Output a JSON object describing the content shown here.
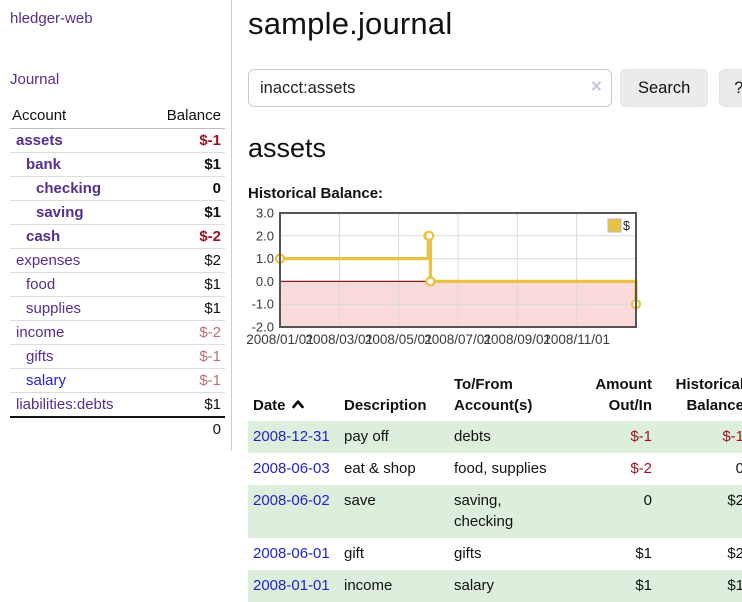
{
  "sidebar": {
    "brand": "hledger-web",
    "journal_link": "Journal",
    "accounts": {
      "col_account": "Account",
      "col_balance": "Balance",
      "rows": [
        {
          "name": "assets",
          "balance": "$-1",
          "level": 1,
          "bold": true,
          "neg": "strong"
        },
        {
          "name": "bank",
          "balance": "$1",
          "level": 2,
          "bold": true
        },
        {
          "name": "checking",
          "balance": "0",
          "level": 3,
          "bold": true
        },
        {
          "name": "saving",
          "balance": "$1",
          "level": 3,
          "bold": true
        },
        {
          "name": "cash",
          "balance": "$-2",
          "level": 2,
          "bold": true,
          "neg": "strong"
        },
        {
          "name": "expenses",
          "balance": "$2",
          "level": 1
        },
        {
          "name": "food",
          "balance": "$1",
          "level": 2
        },
        {
          "name": "supplies",
          "balance": "$1",
          "level": 2
        },
        {
          "name": "income",
          "balance": "$-2",
          "level": 1,
          "neg": "muted"
        },
        {
          "name": "gifts",
          "balance": "$-1",
          "level": 2,
          "neg": "muted"
        },
        {
          "name": "salary",
          "balance": "$-1",
          "level": 2,
          "neg": "muted",
          "link": "blue"
        },
        {
          "name": "liabilities:debts",
          "balance": "$1",
          "level": 1
        }
      ],
      "total": "0"
    }
  },
  "main": {
    "title": "sample.journal",
    "search": {
      "value": "inacct:assets",
      "clear": "×",
      "submit": "Search",
      "help": "?"
    },
    "account_title": "assets",
    "chart_label": "Historical Balance:",
    "register": {
      "headers": {
        "date": "Date",
        "description": "Description",
        "accounts": "To/From Account(s)",
        "amount": "Amount Out/In",
        "balance": "Historical Balance"
      },
      "rows": [
        {
          "date": "2008-12-31",
          "description": "pay off",
          "accounts": "debts",
          "amount": "$-1",
          "amount_neg": true,
          "balance": "$-1",
          "balance_neg": true
        },
        {
          "date": "2008-06-03",
          "description": "eat & shop",
          "accounts": "food, supplies",
          "amount": "$-2",
          "amount_neg": true,
          "balance": "0",
          "balance_neg": false
        },
        {
          "date": "2008-06-02",
          "description": "save",
          "accounts": "saving, checking",
          "amount": "0",
          "amount_neg": false,
          "balance": "$2",
          "balance_neg": false
        },
        {
          "date": "2008-06-01",
          "description": "gift",
          "accounts": "gifts",
          "amount": "$1",
          "amount_neg": false,
          "balance": "$2",
          "balance_neg": false
        },
        {
          "date": "2008-01-01",
          "description": "income",
          "accounts": "salary",
          "amount": "$1",
          "amount_neg": false,
          "balance": "$1",
          "balance_neg": false
        }
      ]
    }
  },
  "chart_data": {
    "type": "line",
    "title": "Historical Balance:",
    "step": true,
    "legend": [
      {
        "label": "$",
        "color": "#e9c243"
      }
    ],
    "legend_position": "top-right",
    "grid": true,
    "x_tick_months": [
      0,
      2,
      4,
      6,
      8,
      10
    ],
    "x_tick_labels": [
      "2008/01/01",
      "2008/03/01",
      "2008/05/01",
      "2008/07/01",
      "2008/09/01",
      "2008/11/01"
    ],
    "xlim_months": [
      0,
      12
    ],
    "y_ticks": [
      3.0,
      2.0,
      1.0,
      0.0,
      -1.0,
      -2.0
    ],
    "ylim": [
      -2,
      3
    ],
    "points": [
      {
        "date": "2008-01-01",
        "month": 0,
        "y": 1
      },
      {
        "date": "2008-06-01",
        "month": 5.0,
        "y": 2
      },
      {
        "date": "2008-06-02",
        "month": 5.03,
        "y": 2
      },
      {
        "date": "2008-06-03",
        "month": 5.07,
        "y": 0
      },
      {
        "date": "2008-12-31",
        "month": 12,
        "y": -1
      }
    ],
    "series_color": "#e9c243",
    "marker": "open-circle",
    "negative_region_fill": "#fadada",
    "zero_line_color": "#8b1a1a",
    "grid_color": "#d9d9d9",
    "border_color": "#555555"
  }
}
